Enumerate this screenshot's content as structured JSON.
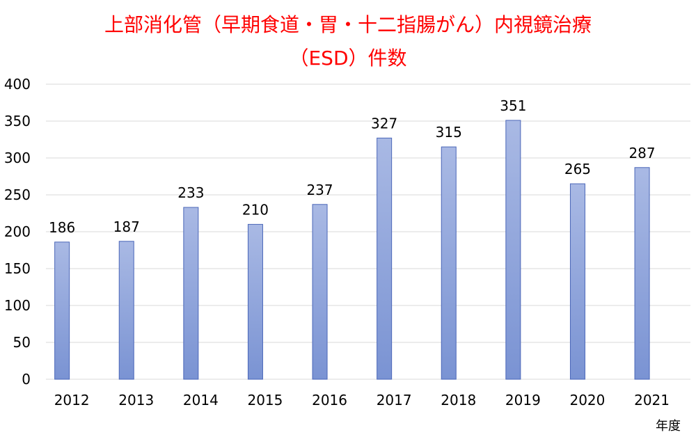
{
  "chart_data": {
    "type": "bar",
    "title_lines": [
      "上部消化管（早期食道・胃・十二指腸がん）内視鏡治療",
      "（ESD）件数"
    ],
    "xlabel": "年度",
    "ylabel": "",
    "categories": [
      "2012",
      "2013",
      "2014",
      "2015",
      "2016",
      "2017",
      "2018",
      "2019",
      "2020",
      "2021"
    ],
    "values": [
      186,
      187,
      233,
      210,
      237,
      327,
      315,
      351,
      265,
      287
    ],
    "ylim": [
      0,
      400
    ],
    "yticks": [
      0,
      50,
      100,
      150,
      200,
      250,
      300,
      350,
      400
    ],
    "grid": true,
    "legend": "none",
    "colors": {
      "title": "#ff0000",
      "bar_top": "#a9b9e4",
      "bar_bottom": "#7a93d3",
      "bar_edge": "#4a66b8",
      "grid": "#d9d9d9"
    }
  }
}
